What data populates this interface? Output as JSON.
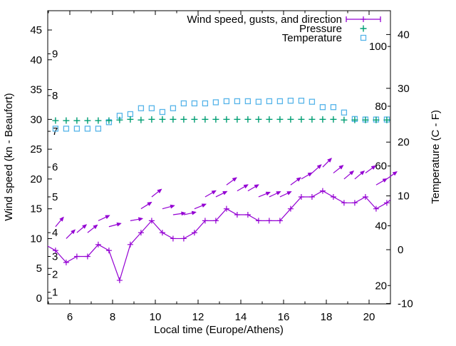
{
  "chart_data": {
    "type": "line",
    "title": "",
    "xlabel": "Local time (Europe/Athens)",
    "ylabel": "Wind speed (kn - Beaufort)",
    "y2label": "Temperature (C - F)",
    "legend": [
      {
        "label": "Wind speed, gusts, and direction",
        "series": "wind",
        "color": "#9400d3",
        "sample": "errorline"
      },
      {
        "label": "Pressure",
        "series": "pressure",
        "color": "#009e73",
        "sample": "plus"
      },
      {
        "label": "Temperature",
        "series": "temperature",
        "color": "#56b4e9",
        "sample": "square"
      }
    ],
    "x_range": [
      4.97,
      21.0
    ],
    "y1_range_kn": [
      -1.0,
      48.2
    ],
    "y2_range_c": [
      -11.2,
      44.4
    ],
    "x_major_ticks": [
      6,
      8,
      10,
      12,
      14,
      16,
      18,
      20
    ],
    "x_minor_ticks": [
      5,
      7,
      9,
      11,
      13,
      15,
      17,
      19
    ],
    "y1_ticks_kn": [
      0,
      5,
      10,
      15,
      20,
      25,
      30,
      35,
      40,
      45
    ],
    "beaufort_labels": [
      [
        1,
        1
      ],
      [
        2,
        4
      ],
      [
        3,
        7
      ],
      [
        4,
        11
      ],
      [
        5,
        17
      ],
      [
        6,
        22
      ],
      [
        7,
        28
      ],
      [
        8,
        34
      ],
      [
        9,
        41
      ]
    ],
    "y2_ticks_c": [
      -10,
      0,
      10,
      20,
      30,
      40
    ],
    "fahrenheit_labels": [
      20,
      40,
      60,
      80,
      100
    ],
    "x_hours": [
      5.33,
      5.83,
      6.33,
      6.83,
      7.33,
      7.83,
      8.33,
      8.83,
      9.33,
      9.83,
      10.33,
      10.83,
      11.33,
      11.83,
      12.33,
      12.83,
      13.33,
      13.83,
      14.33,
      14.83,
      15.33,
      15.83,
      16.33,
      16.83,
      17.33,
      17.83,
      18.33,
      18.83,
      19.33,
      19.83,
      20.33,
      20.83
    ],
    "series": {
      "wind_kn": [
        8,
        6,
        7,
        7,
        9,
        8,
        3,
        9,
        11,
        13,
        11,
        10,
        10,
        11,
        13,
        13,
        15,
        14,
        14,
        13,
        13,
        13,
        15,
        17,
        17,
        18,
        17,
        16,
        16,
        17,
        15,
        16
      ],
      "gust_kn": [
        12,
        10,
        11,
        11,
        13,
        12,
        null,
        13,
        15,
        17,
        15,
        14,
        14,
        15,
        17,
        17,
        19,
        18,
        18,
        17,
        17,
        17,
        19,
        20,
        21,
        22,
        21,
        20,
        20,
        21,
        19,
        20
      ],
      "gust_dir_deg": [
        50,
        45,
        40,
        38,
        25,
        15,
        null,
        10,
        32,
        38,
        15,
        8,
        12,
        22,
        30,
        26,
        36,
        30,
        30,
        22,
        25,
        25,
        36,
        30,
        42,
        45,
        38,
        40,
        40,
        36,
        30,
        36
      ],
      "pressure": [
        29.8,
        29.8,
        29.8,
        29.8,
        29.8,
        29.8,
        29.9,
        30.0,
        29.9,
        30.0,
        30.0,
        30.0,
        30.0,
        30.0,
        30.0,
        30.0,
        30.0,
        30.0,
        30.0,
        30.0,
        30.0,
        30.0,
        30.0,
        30.0,
        30.0,
        30.0,
        30.0,
        29.9,
        29.9,
        29.9,
        29.9,
        29.9
      ],
      "temperature_c": [
        22.5,
        22.5,
        22.5,
        22.5,
        22.5,
        23.7,
        24.9,
        25.2,
        26.3,
        26.3,
        25.6,
        26.3,
        27.2,
        27.2,
        27.2,
        27.4,
        27.6,
        27.6,
        27.6,
        27.5,
        27.6,
        27.6,
        27.7,
        27.7,
        27.5,
        26.5,
        26.5,
        25.5,
        24.3,
        24.2,
        24.2,
        24.2
      ]
    },
    "wind_edge_points": {
      "lead": [
        4.83,
        9
      ],
      "tail": [
        21.33,
        17.5
      ]
    },
    "colors": {
      "wind": "#9400d3",
      "pressure": "#009e73",
      "temperature": "#56b4e9",
      "axis": "#000000",
      "background": "#ffffff"
    }
  }
}
